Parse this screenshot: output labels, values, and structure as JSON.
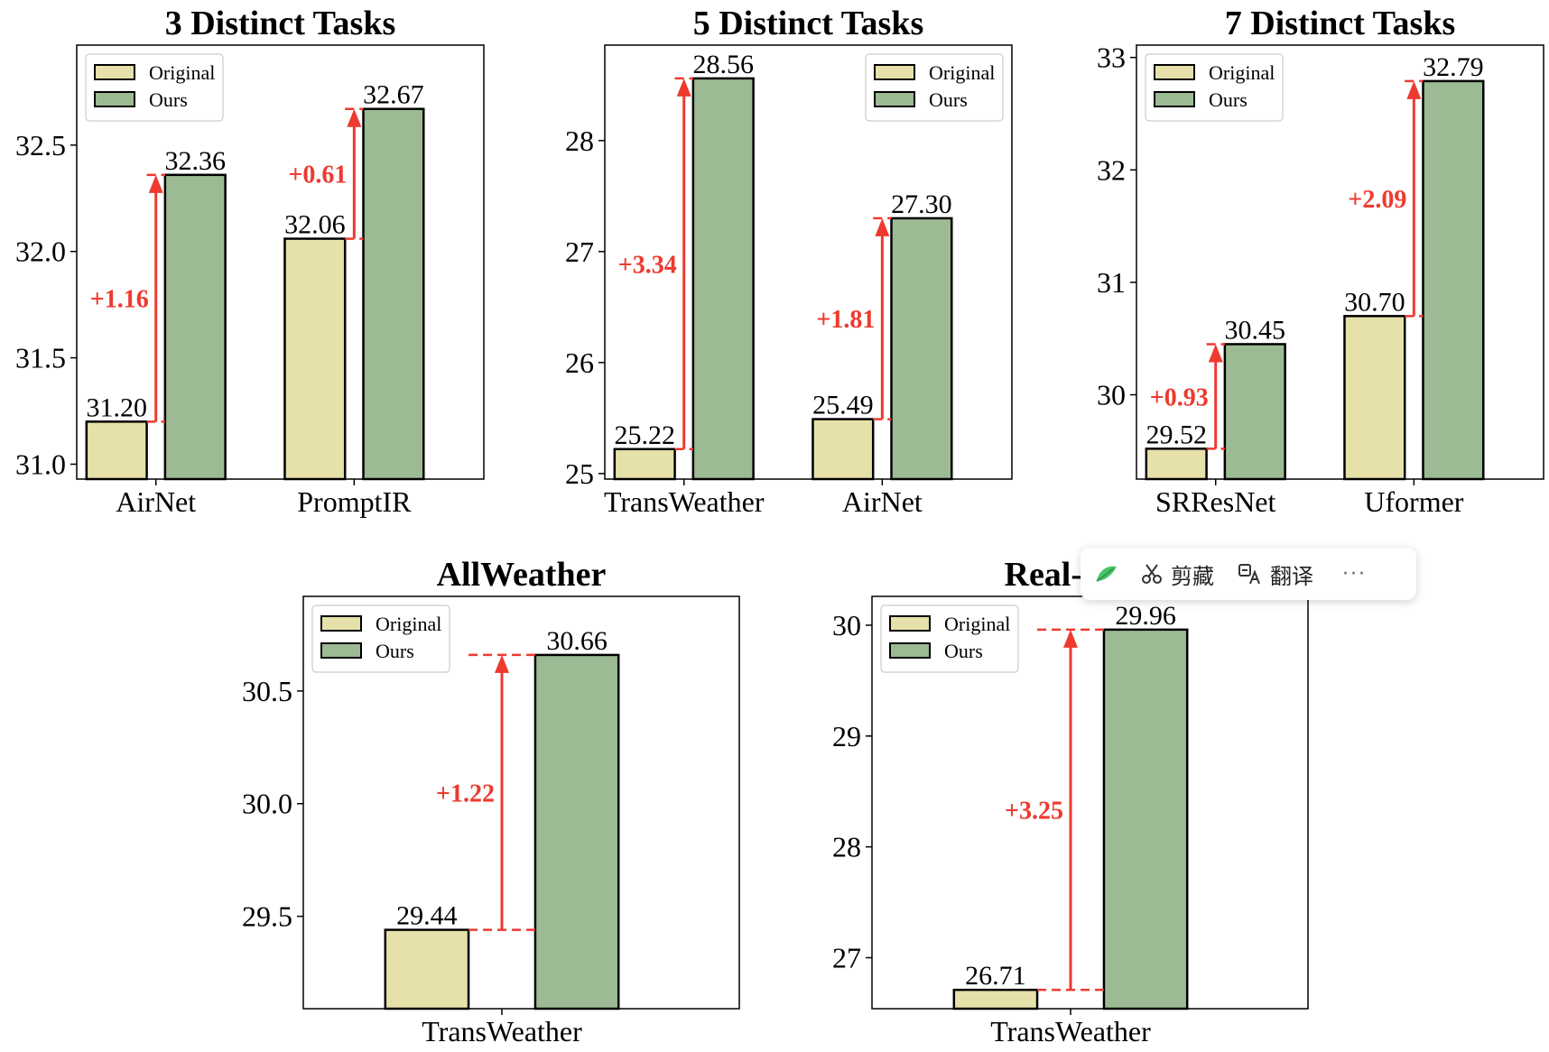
{
  "colors": {
    "original": "#e6e0ab",
    "ours": "#9cba94",
    "annotation": "#ee3a2f",
    "frame": "#000000"
  },
  "chart_data": [
    {
      "type": "bar",
      "title": "3 Distinct Tasks",
      "categories": [
        "AirNet",
        "PromptIR"
      ],
      "series": [
        {
          "name": "Original",
          "values": [
            31.2,
            32.06
          ]
        },
        {
          "name": "Ours",
          "values": [
            32.36,
            32.67
          ]
        }
      ],
      "value_labels": [
        [
          "31.20",
          "32.36"
        ],
        [
          "32.06",
          "32.67"
        ]
      ],
      "gains": [
        "+1.16",
        "+0.61"
      ],
      "ylim": [
        30.93,
        32.97
      ],
      "yticks": [
        31.0,
        31.5,
        32.0,
        32.5
      ],
      "ytick_labels": [
        "31.0",
        "31.5",
        "32.0",
        "32.5"
      ],
      "legend": "top-left",
      "xlabel": "",
      "ylabel": ""
    },
    {
      "type": "bar",
      "title": "5 Distinct Tasks",
      "categories": [
        "TransWeather",
        "AirNet"
      ],
      "series": [
        {
          "name": "Original",
          "values": [
            25.22,
            25.49
          ]
        },
        {
          "name": "Ours",
          "values": [
            28.56,
            27.3
          ]
        }
      ],
      "value_labels": [
        [
          "25.22",
          "28.56"
        ],
        [
          "25.49",
          "27.30"
        ]
      ],
      "gains": [
        "+3.34",
        "+1.81"
      ],
      "ylim": [
        24.95,
        28.86
      ],
      "yticks": [
        25,
        26,
        27,
        28
      ],
      "ytick_labels": [
        "25",
        "26",
        "27",
        "28"
      ],
      "legend": "top-right",
      "xlabel": "",
      "ylabel": ""
    },
    {
      "type": "bar",
      "title": "7 Distinct Tasks",
      "categories": [
        "SRResNet",
        "Uformer"
      ],
      "series": [
        {
          "name": "Original",
          "values": [
            29.52,
            30.7
          ]
        },
        {
          "name": "Ours",
          "values": [
            30.45,
            32.79
          ]
        }
      ],
      "value_labels": [
        [
          "29.52",
          "30.45"
        ],
        [
          "30.70",
          "32.79"
        ]
      ],
      "gains": [
        "+0.93",
        "+2.09"
      ],
      "ylim": [
        29.25,
        33.11
      ],
      "yticks": [
        30,
        31,
        32,
        33
      ],
      "ytick_labels": [
        "30",
        "31",
        "32",
        "33"
      ],
      "legend": "top-left",
      "xlabel": "",
      "ylabel": ""
    },
    {
      "type": "bar",
      "title": "AllWeather",
      "categories": [
        "TransWeather"
      ],
      "series": [
        {
          "name": "Original",
          "values": [
            29.44
          ]
        },
        {
          "name": "Ours",
          "values": [
            30.66
          ]
        }
      ],
      "value_labels": [
        [
          "29.44",
          "30.66"
        ]
      ],
      "gains": [
        "+1.22"
      ],
      "ylim": [
        29.09,
        30.92
      ],
      "yticks": [
        29.5,
        30.0,
        30.5
      ],
      "ytick_labels": [
        "29.5",
        "30.0",
        "30.5"
      ],
      "legend": "top-left",
      "xlabel": "",
      "ylabel": ""
    },
    {
      "type": "bar",
      "title": "Real-World",
      "categories": [
        "TransWeather"
      ],
      "series": [
        {
          "name": "Original",
          "values": [
            26.71
          ]
        },
        {
          "name": "Ours",
          "values": [
            29.96
          ]
        }
      ],
      "value_labels": [
        [
          "26.71",
          "29.96"
        ]
      ],
      "gains": [
        "+3.25"
      ],
      "ylim": [
        26.54,
        30.26
      ],
      "yticks": [
        27,
        28,
        29,
        30
      ],
      "ytick_labels": [
        "27",
        "28",
        "29",
        "30"
      ],
      "legend": "top-left",
      "xlabel": "",
      "ylabel": ""
    }
  ],
  "toolbar": {
    "logo_icon": "app-logo-icon",
    "clip_label": "剪藏",
    "clip_icon": "scissors-icon",
    "translate_label": "翻译",
    "translate_icon": "translate-icon",
    "more_label": "···",
    "more_icon": "more-icon"
  }
}
